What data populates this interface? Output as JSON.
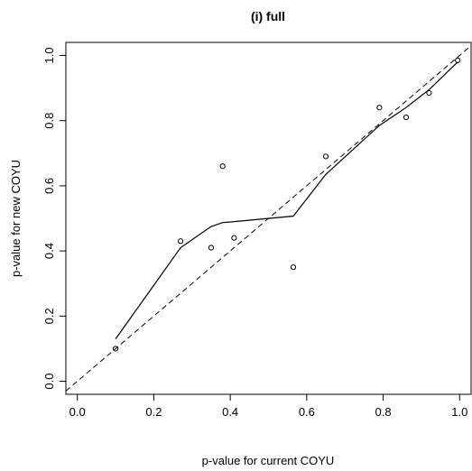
{
  "chart_data": {
    "type": "scatter",
    "title": "(i) full",
    "xlabel": "p-value for current COYU",
    "ylabel": "p-value for new COYU",
    "xlim": [
      -0.03,
      1.03
    ],
    "ylim": [
      -0.04,
      1.04
    ],
    "x_ticks": [
      0.0,
      0.2,
      0.4,
      0.6,
      0.8,
      1.0
    ],
    "y_ticks": [
      0.0,
      0.2,
      0.4,
      0.6,
      0.8,
      1.0
    ],
    "x_tick_labels": [
      "0.0",
      "0.2",
      "0.4",
      "0.6",
      "0.8",
      "1.0"
    ],
    "y_tick_labels": [
      "0.0",
      "0.2",
      "0.4",
      "0.6",
      "0.8",
      "1.0"
    ],
    "grid": false,
    "points": [
      {
        "x": 0.1,
        "y": 0.1
      },
      {
        "x": 0.27,
        "y": 0.43
      },
      {
        "x": 0.35,
        "y": 0.41
      },
      {
        "x": 0.38,
        "y": 0.66
      },
      {
        "x": 0.41,
        "y": 0.44
      },
      {
        "x": 0.565,
        "y": 0.35
      },
      {
        "x": 0.65,
        "y": 0.69
      },
      {
        "x": 0.79,
        "y": 0.84
      },
      {
        "x": 0.86,
        "y": 0.81
      },
      {
        "x": 0.92,
        "y": 0.885
      },
      {
        "x": 0.995,
        "y": 0.985
      }
    ],
    "smooth_line": [
      {
        "x": 0.1,
        "y": 0.13
      },
      {
        "x": 0.27,
        "y": 0.41
      },
      {
        "x": 0.35,
        "y": 0.475
      },
      {
        "x": 0.38,
        "y": 0.487
      },
      {
        "x": 0.41,
        "y": 0.49
      },
      {
        "x": 0.565,
        "y": 0.507
      },
      {
        "x": 0.65,
        "y": 0.635
      },
      {
        "x": 0.79,
        "y": 0.785
      },
      {
        "x": 0.86,
        "y": 0.84
      },
      {
        "x": 0.92,
        "y": 0.895
      },
      {
        "x": 0.995,
        "y": 0.98
      }
    ],
    "reference_line": {
      "slope": 1,
      "intercept": 0,
      "style": "dashed"
    }
  }
}
